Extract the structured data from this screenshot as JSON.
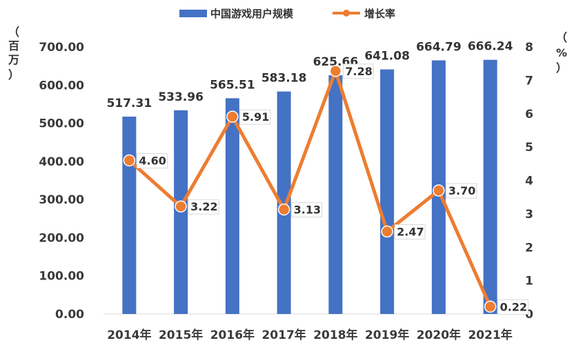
{
  "chart_data": {
    "type": "bar",
    "categories": [
      "2014年",
      "2015年",
      "2016年",
      "2017年",
      "2018年",
      "2019年",
      "2020年",
      "2021年"
    ],
    "series": [
      {
        "name": "中国游戏用户规模",
        "type": "bar",
        "axis": "left",
        "color": "#4472C4",
        "values": [
          517.31,
          533.96,
          565.51,
          583.18,
          625.66,
          641.08,
          664.79,
          666.24
        ],
        "labels": [
          "517.31",
          "533.96",
          "565.51",
          "583.18",
          "625.66",
          "641.08",
          "664.79",
          "666.24"
        ]
      },
      {
        "name": "增长率",
        "type": "line",
        "axis": "right",
        "color": "#ED7D31",
        "values": [
          4.6,
          3.22,
          5.91,
          3.13,
          7.28,
          2.47,
          3.7,
          0.22
        ],
        "labels": [
          "4.60",
          "3.22",
          "5.91",
          "3.13",
          "7.28",
          "2.47",
          "3.70",
          "0.22"
        ]
      }
    ],
    "left_axis": {
      "unit_label": [
        "（",
        "百",
        "万",
        "）"
      ],
      "ylim": [
        0,
        700
      ],
      "ticks": [
        "0.00",
        "100.00",
        "200.00",
        "300.00",
        "400.00",
        "500.00",
        "600.00",
        "700.00"
      ]
    },
    "right_axis": {
      "unit_label": [
        "（",
        "%",
        "）"
      ],
      "ylim": [
        0,
        8
      ],
      "ticks": [
        "0",
        "1",
        "2",
        "3",
        "4",
        "5",
        "6",
        "7",
        "8"
      ]
    },
    "legend": {
      "placement": "top-center"
    },
    "grid": false
  }
}
